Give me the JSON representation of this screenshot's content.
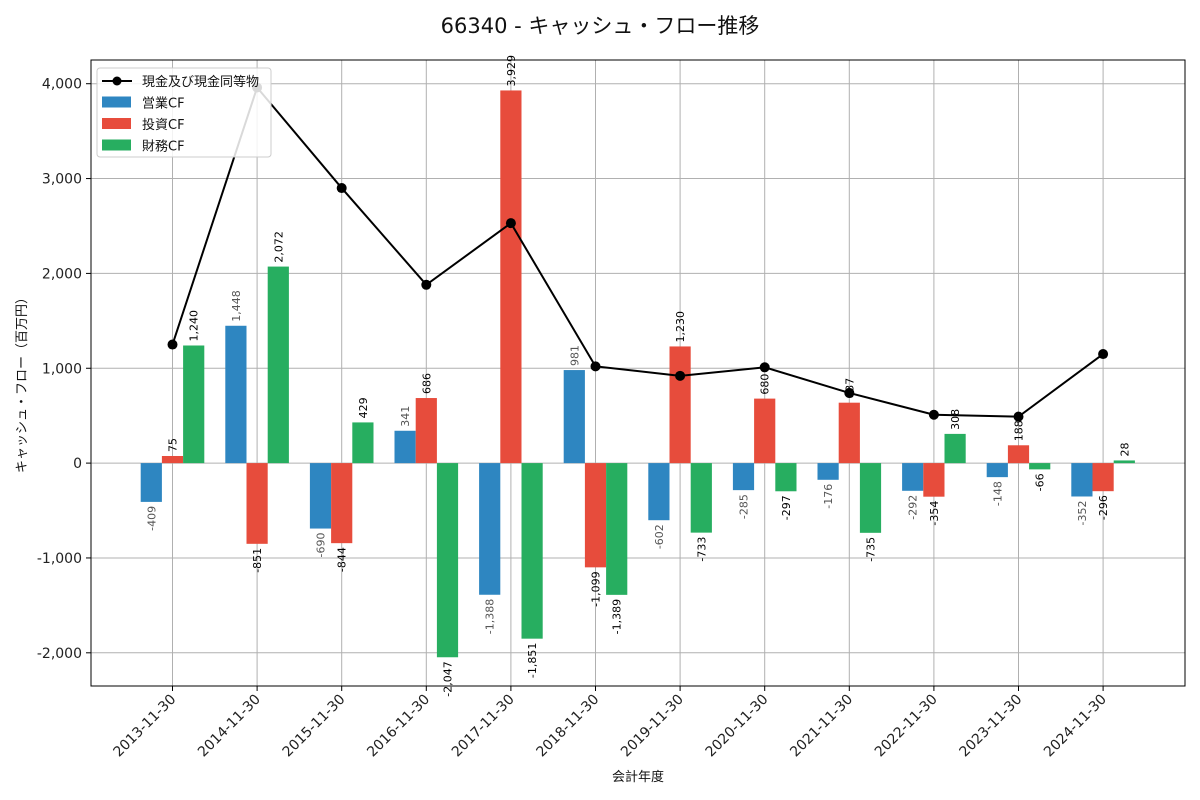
{
  "chart_data": {
    "type": "bar",
    "title": "66340 - キャッシュ・フロー推移",
    "xlabel": "会計年度",
    "ylabel": "キャッシュ・フロー（百万円）",
    "ylim": [
      -2350,
      4250
    ],
    "yticks": [
      -2000,
      -1000,
      0,
      1000,
      2000,
      3000,
      4000
    ],
    "ytick_labels": [
      "-2,000",
      "-1,000",
      "0",
      "1,000",
      "2,000",
      "3,000",
      "4,000"
    ],
    "grid": true,
    "legend_position": "top-left",
    "categories": [
      "2013-11-30",
      "2014-11-30",
      "2015-11-30",
      "2016-11-30",
      "2017-11-30",
      "2018-11-30",
      "2019-11-30",
      "2020-11-30",
      "2021-11-30",
      "2022-11-30",
      "2023-11-30",
      "2024-11-30"
    ],
    "series": [
      {
        "name": "営業CF",
        "type": "bar",
        "color": "#2e86c1",
        "label_color": "#555555",
        "values": [
          -409,
          1448,
          -690,
          341,
          -1388,
          981,
          -602,
          -285,
          -176,
          -292,
          -148,
          -352
        ],
        "labels": [
          "-409",
          "1,448",
          "-690",
          "341",
          "-1,388",
          "981",
          "-602",
          "-285",
          "-176",
          "-292",
          "-148",
          "-352"
        ]
      },
      {
        "name": "投資CF",
        "type": "bar",
        "color": "#e74c3c",
        "label_color": "#000000",
        "values": [
          75,
          -851,
          -844,
          686,
          3929,
          -1099,
          1230,
          680,
          637,
          -354,
          188,
          -296
        ],
        "labels": [
          "75",
          "-851",
          "-844",
          "686",
          "3,929",
          "-1,099",
          "1,230",
          "680",
          "637",
          "-354",
          "188",
          "-296"
        ]
      },
      {
        "name": "財務CF",
        "type": "bar",
        "color": "#27ae60",
        "label_color": "#000000",
        "values": [
          1240,
          2072,
          429,
          -2047,
          -1851,
          -1389,
          -733,
          -297,
          -735,
          308,
          -66,
          28
        ],
        "labels": [
          "1,240",
          "2,072",
          "429",
          "-2,047",
          "-1,851",
          "-1,389",
          "-733",
          "-297",
          "-735",
          "308",
          "-66",
          "28"
        ]
      },
      {
        "name": "現金及び現金同等物",
        "type": "line",
        "color": "#000000",
        "values": [
          1250,
          3960,
          2900,
          1880,
          2530,
          1020,
          920,
          1010,
          740,
          510,
          490,
          1150
        ]
      }
    ]
  }
}
